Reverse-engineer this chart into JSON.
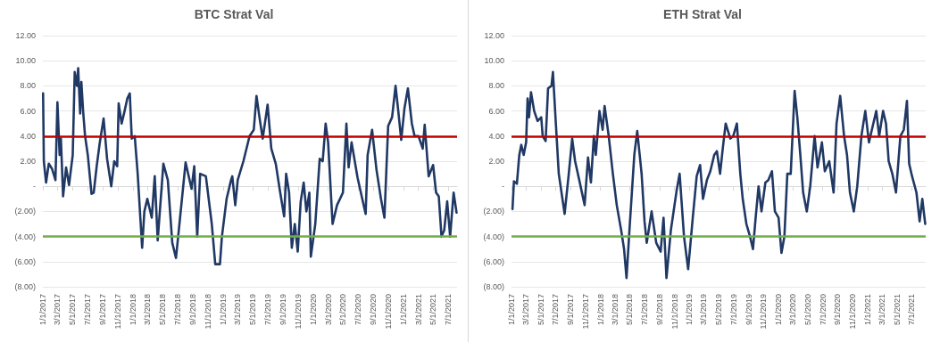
{
  "chart_data": [
    {
      "type": "line",
      "title": "BTC Strat Val",
      "grid": "y",
      "marker": "none",
      "line_style": "solid",
      "xlim": [
        "2017-01-01",
        "2021-08-05"
      ],
      "xticks": [
        {
          "value": "2017-01-01",
          "label": "1/1/2017"
        },
        {
          "value": "2017-03-01",
          "label": "3/1/2017"
        },
        {
          "value": "2017-05-01",
          "label": "5/1/2017"
        },
        {
          "value": "2017-07-01",
          "label": "7/1/2017"
        },
        {
          "value": "2017-09-01",
          "label": "9/1/2017"
        },
        {
          "value": "2017-11-01",
          "label": "11/1/2017"
        },
        {
          "value": "2018-01-01",
          "label": "1/1/2018"
        },
        {
          "value": "2018-03-01",
          "label": "3/1/2018"
        },
        {
          "value": "2018-05-01",
          "label": "5/1/2018"
        },
        {
          "value": "2018-07-01",
          "label": "7/1/2018"
        },
        {
          "value": "2018-09-01",
          "label": "9/1/2018"
        },
        {
          "value": "2018-11-01",
          "label": "11/1/2018"
        },
        {
          "value": "2019-01-01",
          "label": "1/1/2019"
        },
        {
          "value": "2019-03-01",
          "label": "3/1/2019"
        },
        {
          "value": "2019-05-01",
          "label": "5/1/2019"
        },
        {
          "value": "2019-07-01",
          "label": "7/1/2019"
        },
        {
          "value": "2019-09-01",
          "label": "9/1/2019"
        },
        {
          "value": "2019-11-01",
          "label": "11/1/2019"
        },
        {
          "value": "2020-01-01",
          "label": "1/1/2020"
        },
        {
          "value": "2020-03-01",
          "label": "3/1/2020"
        },
        {
          "value": "2020-05-01",
          "label": "5/1/2020"
        },
        {
          "value": "2020-07-01",
          "label": "7/1/2020"
        },
        {
          "value": "2020-09-01",
          "label": "9/1/2020"
        },
        {
          "value": "2020-11-01",
          "label": "11/1/2020"
        },
        {
          "value": "2021-01-01",
          "label": "1/1/2021"
        },
        {
          "value": "2021-03-01",
          "label": "3/1/2021"
        },
        {
          "value": "2021-05-01",
          "label": "5/1/2021"
        },
        {
          "value": "2021-07-01",
          "label": "7/1/2021"
        }
      ],
      "ylim": [
        -8,
        12
      ],
      "yticks": [
        {
          "value": -8,
          "label": "(8.00)"
        },
        {
          "value": -6,
          "label": "(6.00)"
        },
        {
          "value": -4,
          "label": "(4.00)"
        },
        {
          "value": -2,
          "label": "(2.00)"
        },
        {
          "value": 0,
          "label": "-"
        },
        {
          "value": 2,
          "label": "2.00"
        },
        {
          "value": 4,
          "label": "4.00"
        },
        {
          "value": 6,
          "label": "6.00"
        },
        {
          "value": 8,
          "label": "8.00"
        },
        {
          "value": 10,
          "label": "10.00"
        },
        {
          "value": 12,
          "label": "12.00"
        }
      ],
      "ref_lines": [
        {
          "axis": "y",
          "value": 4,
          "color": "#c00000"
        },
        {
          "axis": "y",
          "value": -4,
          "color": "#70ad47"
        }
      ],
      "series": [
        {
          "color": "#203864",
          "x": [
            "2017-01-02",
            "2017-01-05",
            "2017-01-14",
            "2017-01-25",
            "2017-02-07",
            "2017-02-21",
            "2017-03-01",
            "2017-03-10",
            "2017-03-15",
            "2017-03-24",
            "2017-04-05",
            "2017-04-17",
            "2017-05-02",
            "2017-05-10",
            "2017-05-19",
            "2017-05-24",
            "2017-06-01",
            "2017-06-06",
            "2017-06-13",
            "2017-06-21",
            "2017-07-02",
            "2017-07-17",
            "2017-07-26",
            "2017-08-07",
            "2017-08-19",
            "2017-09-04",
            "2017-09-18",
            "2017-10-05",
            "2017-10-17",
            "2017-10-29",
            "2017-11-04",
            "2017-11-16",
            "2017-11-28",
            "2017-12-09",
            "2017-12-19",
            "2017-12-27",
            "2018-01-08",
            "2018-01-20",
            "2018-02-07",
            "2018-02-16",
            "2018-02-28",
            "2018-03-18",
            "2018-03-30",
            "2018-04-11",
            "2018-05-04",
            "2018-05-22",
            "2018-06-09",
            "2018-06-24",
            "2018-07-08",
            "2018-08-02",
            "2018-08-26",
            "2018-09-06",
            "2018-09-18",
            "2018-09-30",
            "2018-10-23",
            "2018-11-16",
            "2018-11-30",
            "2018-12-19",
            "2018-12-27",
            "2019-01-15",
            "2019-02-02",
            "2019-02-07",
            "2019-02-19",
            "2019-03-01",
            "2019-03-24",
            "2019-04-18",
            "2019-05-05",
            "2019-05-16",
            "2019-05-28",
            "2019-06-10",
            "2019-06-30",
            "2019-07-15",
            "2019-08-02",
            "2019-08-20",
            "2019-09-05",
            "2019-09-13",
            "2019-09-25",
            "2019-10-06",
            "2019-10-18",
            "2019-10-30",
            "2019-11-11",
            "2019-11-23",
            "2019-12-04",
            "2019-12-16",
            "2019-12-22",
            "2020-01-09",
            "2020-01-27",
            "2020-02-08",
            "2020-02-20",
            "2020-03-01",
            "2020-03-19",
            "2020-04-06",
            "2020-04-30",
            "2020-05-14",
            "2020-05-23",
            "2020-06-04",
            "2020-06-28",
            "2020-07-15",
            "2020-07-31",
            "2020-08-08",
            "2020-08-26",
            "2020-09-13",
            "2020-10-01",
            "2020-10-15",
            "2020-10-30",
            "2020-11-15",
            "2020-11-29",
            "2020-12-10",
            "2020-12-22",
            "2021-01-04",
            "2021-01-18",
            "2021-02-03",
            "2021-02-14",
            "2021-03-02",
            "2021-03-19",
            "2021-03-27",
            "2021-04-12",
            "2021-04-30",
            "2021-05-12",
            "2021-05-23",
            "2021-06-03",
            "2021-06-14",
            "2021-06-26",
            "2021-07-08",
            "2021-07-22",
            "2021-08-03"
          ],
          "values": [
            7.4,
            2.0,
            0.3,
            1.8,
            1.4,
            0.5,
            6.7,
            2.5,
            3.8,
            -0.8,
            1.5,
            0.1,
            2.5,
            9.1,
            8.0,
            9.4,
            5.8,
            8.3,
            6.0,
            4.0,
            2.5,
            -0.6,
            -0.5,
            1.6,
            3.4,
            5.4,
            2.2,
            0.0,
            2.0,
            1.6,
            6.6,
            5.0,
            6.0,
            7.0,
            7.4,
            3.8,
            4.0,
            1.0,
            -4.9,
            -2.0,
            -1.0,
            -2.5,
            0.8,
            -4.3,
            1.8,
            0.5,
            -4.5,
            -5.7,
            -3.0,
            1.9,
            -0.2,
            1.6,
            -4.0,
            1.0,
            0.8,
            -3.0,
            -6.2,
            -6.2,
            -4.0,
            -1.0,
            0.5,
            0.8,
            -1.5,
            0.5,
            2.0,
            4.0,
            4.5,
            7.2,
            5.5,
            3.8,
            6.5,
            3.0,
            1.8,
            -0.5,
            -2.4,
            1.0,
            -0.5,
            -4.9,
            -3.0,
            -5.2,
            -1.2,
            0.3,
            -2.0,
            -0.5,
            -5.6,
            -3.0,
            2.2,
            2.0,
            5.0,
            3.5,
            -3.0,
            -1.5,
            -0.5,
            5.0,
            1.5,
            3.5,
            0.7,
            -0.8,
            -2.2,
            2.5,
            4.5,
            1.3,
            -1.0,
            -2.5,
            4.8,
            5.5,
            8.0,
            6.0,
            3.7,
            6.2,
            7.8,
            5.0,
            4.0,
            4.0,
            3.0,
            4.9,
            0.8,
            1.7,
            -0.5,
            -0.8,
            -4.0,
            -3.5,
            -1.2,
            -4.0,
            -0.5,
            -2.1
          ]
        }
      ]
    },
    {
      "type": "line",
      "title": "ETH Strat Val",
      "grid": "y",
      "marker": "none",
      "line_style": "solid",
      "xlim": [
        "2017-01-01",
        "2021-08-28"
      ],
      "xticks": [
        {
          "value": "2017-01-01",
          "label": "1/1/2017"
        },
        {
          "value": "2017-03-01",
          "label": "3/1/2017"
        },
        {
          "value": "2017-05-01",
          "label": "5/1/2017"
        },
        {
          "value": "2017-07-01",
          "label": "7/1/2017"
        },
        {
          "value": "2017-09-01",
          "label": "9/1/2017"
        },
        {
          "value": "2017-11-01",
          "label": "11/1/2017"
        },
        {
          "value": "2018-01-01",
          "label": "1/1/2018"
        },
        {
          "value": "2018-03-01",
          "label": "3/1/2018"
        },
        {
          "value": "2018-05-01",
          "label": "5/1/2018"
        },
        {
          "value": "2018-07-01",
          "label": "7/1/2018"
        },
        {
          "value": "2018-09-01",
          "label": "9/1/2018"
        },
        {
          "value": "2018-11-01",
          "label": "11/1/2018"
        },
        {
          "value": "2019-01-01",
          "label": "1/1/2019"
        },
        {
          "value": "2019-03-01",
          "label": "3/1/2019"
        },
        {
          "value": "2019-05-01",
          "label": "5/1/2019"
        },
        {
          "value": "2019-07-01",
          "label": "7/1/2019"
        },
        {
          "value": "2019-09-01",
          "label": "9/1/2019"
        },
        {
          "value": "2019-11-01",
          "label": "11/1/2019"
        },
        {
          "value": "2020-01-01",
          "label": "1/1/2020"
        },
        {
          "value": "2020-03-01",
          "label": "3/1/2020"
        },
        {
          "value": "2020-05-01",
          "label": "5/1/2020"
        },
        {
          "value": "2020-07-01",
          "label": "7/1/2020"
        },
        {
          "value": "2020-09-01",
          "label": "9/1/2020"
        },
        {
          "value": "2020-11-01",
          "label": "11/1/2020"
        },
        {
          "value": "2021-01-01",
          "label": "1/1/2021"
        },
        {
          "value": "2021-03-01",
          "label": "3/1/2021"
        },
        {
          "value": "2021-05-01",
          "label": "5/1/2021"
        },
        {
          "value": "2021-07-01",
          "label": "7/1/2021"
        }
      ],
      "ylim": [
        -8,
        12
      ],
      "yticks": [
        {
          "value": -8,
          "label": "(8.00)"
        },
        {
          "value": -6,
          "label": "(6.00)"
        },
        {
          "value": -4,
          "label": "(4.00)"
        },
        {
          "value": -2,
          "label": "(2.00)"
        },
        {
          "value": 0,
          "label": "-"
        },
        {
          "value": 2,
          "label": "2.00"
        },
        {
          "value": 4,
          "label": "4.00"
        },
        {
          "value": 6,
          "label": "6.00"
        },
        {
          "value": 8,
          "label": "8.00"
        },
        {
          "value": 10,
          "label": "10.00"
        },
        {
          "value": 12,
          "label": "12.00"
        }
      ],
      "ref_lines": [
        {
          "axis": "y",
          "value": 4,
          "color": "#c00000"
        },
        {
          "axis": "y",
          "value": -4,
          "color": "#70ad47"
        }
      ],
      "series": [
        {
          "color": "#203864",
          "x": [
            "2017-01-05",
            "2017-01-11",
            "2017-01-23",
            "2017-02-02",
            "2017-02-10",
            "2017-02-20",
            "2017-03-02",
            "2017-03-08",
            "2017-03-14",
            "2017-03-22",
            "2017-04-04",
            "2017-04-18",
            "2017-05-03",
            "2017-05-09",
            "2017-05-21",
            "2017-05-31",
            "2017-06-14",
            "2017-06-20",
            "2017-07-02",
            "2017-07-14",
            "2017-07-29",
            "2017-08-07",
            "2017-08-23",
            "2017-09-07",
            "2017-09-19",
            "2017-10-06",
            "2017-10-28",
            "2017-11-11",
            "2017-11-23",
            "2017-12-05",
            "2017-12-13",
            "2017-12-28",
            "2018-01-10",
            "2018-01-18",
            "2018-02-04",
            "2018-02-21",
            "2018-03-09",
            "2018-03-27",
            "2018-04-08",
            "2018-04-18",
            "2018-04-30",
            "2018-05-20",
            "2018-06-01",
            "2018-06-19",
            "2018-07-01",
            "2018-07-10",
            "2018-07-30",
            "2018-08-18",
            "2018-09-05",
            "2018-09-17",
            "2018-09-29",
            "2018-10-17",
            "2018-11-10",
            "2018-11-22",
            "2018-12-10",
            "2018-12-27",
            "2019-01-15",
            "2019-01-31",
            "2019-02-14",
            "2019-02-26",
            "2019-03-14",
            "2019-03-28",
            "2019-04-13",
            "2019-04-24",
            "2019-05-07",
            "2019-05-18",
            "2019-05-30",
            "2019-06-18",
            "2019-06-30",
            "2019-07-15",
            "2019-07-29",
            "2019-08-08",
            "2019-08-23",
            "2019-09-07",
            "2019-09-19",
            "2019-09-30",
            "2019-10-12",
            "2019-10-24",
            "2019-11-09",
            "2019-11-21",
            "2019-12-06",
            "2019-12-18",
            "2020-01-02",
            "2020-01-14",
            "2020-01-26",
            "2020-02-07",
            "2020-02-21",
            "2020-03-08",
            "2020-03-19",
            "2020-03-31",
            "2020-04-12",
            "2020-04-27",
            "2020-05-11",
            "2020-05-29",
            "2020-06-10",
            "2020-06-28",
            "2020-07-10",
            "2020-07-28",
            "2020-08-15",
            "2020-08-27",
            "2020-09-11",
            "2020-09-27",
            "2020-10-09",
            "2020-10-21",
            "2020-11-06",
            "2020-11-20",
            "2020-12-07",
            "2020-12-23",
            "2021-01-07",
            "2021-01-19",
            "2021-02-06",
            "2021-02-18",
            "2021-03-06",
            "2021-03-18",
            "2021-03-29",
            "2021-04-13",
            "2021-04-28",
            "2021-05-16",
            "2021-05-30",
            "2021-06-12",
            "2021-06-21",
            "2021-07-03",
            "2021-07-21",
            "2021-08-03",
            "2021-08-14",
            "2021-08-26"
          ],
          "values": [
            -1.8,
            0.4,
            0.2,
            2.5,
            3.3,
            2.5,
            3.5,
            7.0,
            5.5,
            7.5,
            6.0,
            5.2,
            5.5,
            4.0,
            3.6,
            7.8,
            8.0,
            9.1,
            5.0,
            1.0,
            -1.0,
            -2.2,
            0.8,
            3.8,
            2.0,
            0.5,
            -1.5,
            2.3,
            0.3,
            4.0,
            2.5,
            6.0,
            4.5,
            6.4,
            4.0,
            1.0,
            -1.5,
            -3.5,
            -5.0,
            -7.3,
            -3.5,
            2.5,
            4.4,
            1.0,
            -2.8,
            -4.5,
            -2.0,
            -4.5,
            -5.2,
            -2.5,
            -7.3,
            -3.5,
            -0.3,
            1.0,
            -4.0,
            -6.6,
            -2.5,
            0.8,
            1.7,
            -1.0,
            0.5,
            1.2,
            2.5,
            2.8,
            1.0,
            3.0,
            5.0,
            3.8,
            4.0,
            5.0,
            1.0,
            -1.0,
            -3.0,
            -4.0,
            -5.0,
            -2.5,
            0.0,
            -2.0,
            0.3,
            0.5,
            1.2,
            -2.0,
            -2.5,
            -5.3,
            -4.0,
            1.0,
            1.0,
            7.6,
            5.5,
            2.6,
            -0.5,
            -2.0,
            0.0,
            4.0,
            1.5,
            3.5,
            1.2,
            2.0,
            -0.5,
            5.0,
            7.2,
            4.0,
            2.5,
            -0.5,
            -2.0,
            0.0,
            4.0,
            6.0,
            3.5,
            4.5,
            6.0,
            4.0,
            6.0,
            5.0,
            2.0,
            1.0,
            -0.5,
            4.0,
            4.5,
            6.8,
            1.8,
            0.8,
            -0.5,
            -2.8,
            -1.0,
            -3.0
          ]
        }
      ]
    }
  ]
}
